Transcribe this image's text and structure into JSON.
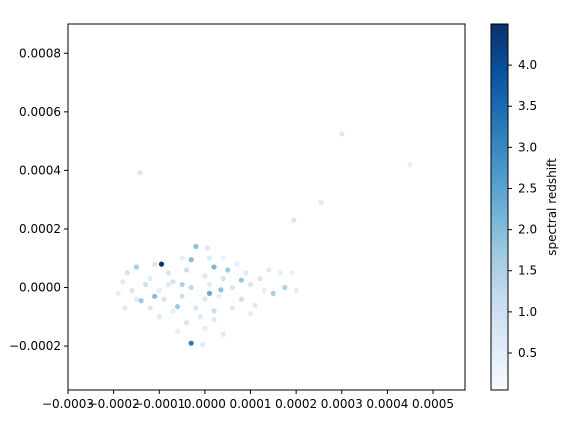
{
  "chart_data": {
    "type": "scatter",
    "title": "",
    "xlabel": "",
    "ylabel": "",
    "xlim": [
      -0.0003,
      0.00057
    ],
    "ylim": [
      -0.00035,
      0.0009
    ],
    "xticks": [
      -0.0003,
      -0.0002,
      -0.0001,
      0.0,
      0.0001,
      0.0002,
      0.0003,
      0.0004,
      0.0005
    ],
    "xtick_labels": [
      "−0.0003",
      "−0.0002",
      "−0.0001",
      "0.0000",
      "0.0001",
      "0.0002",
      "0.0003",
      "0.0004",
      "0.0005"
    ],
    "yticks": [
      -0.0002,
      0.0,
      0.0002,
      0.0004,
      0.0006,
      0.0008
    ],
    "ytick_labels": [
      "−0.0002",
      "0.0000",
      "0.0002",
      "0.0004",
      "0.0006",
      "0.0008"
    ],
    "colormap": "Blues",
    "colorbar": {
      "label": "spectral redshift",
      "range": [
        0.05,
        4.5
      ],
      "ticks": [
        0.5,
        1.0,
        1.5,
        2.0,
        2.5,
        3.0,
        3.5,
        4.0
      ],
      "tick_labels": [
        "0.5",
        "1.0",
        "1.5",
        "2.0",
        "2.5",
        "3.0",
        "3.5",
        "4.0"
      ]
    },
    "grid": false,
    "points": [
      {
        "x": 0.0003,
        "y": 0.000525,
        "z": 0.6
      },
      {
        "x": 0.00045,
        "y": 0.00042,
        "z": 0.4
      },
      {
        "x": 0.000195,
        "y": 0.00023,
        "z": 0.8
      },
      {
        "x": 0.000255,
        "y": 0.00029,
        "z": 0.6
      },
      {
        "x": -0.000142,
        "y": 0.000392,
        "z": 0.7
      },
      {
        "x": -9.5e-05,
        "y": 8e-05,
        "z": 4.4
      },
      {
        "x": -2e-05,
        "y": 0.00014,
        "z": 1.9
      },
      {
        "x": -3e-05,
        "y": -0.00019,
        "z": 3.2
      },
      {
        "x": 8e-05,
        "y": 2.5e-05,
        "z": 1.8
      },
      {
        "x": 1e-05,
        "y": -2e-05,
        "z": 2.3
      },
      {
        "x": -0.00015,
        "y": 7e-05,
        "z": 1.6
      },
      {
        "x": -0.00011,
        "y": -3e-05,
        "z": 2.0
      },
      {
        "x": 5e-05,
        "y": 6e-05,
        "z": 1.7
      },
      {
        "x": 2e-05,
        "y": 7e-05,
        "z": 2.1
      },
      {
        "x": -5e-05,
        "y": 1e-05,
        "z": 1.5
      },
      {
        "x": -3e-05,
        "y": 9.5e-05,
        "z": 2.0
      },
      {
        "x": -0.00014,
        "y": -4.5e-05,
        "z": 1.8
      },
      {
        "x": 0.00015,
        "y": -2e-05,
        "z": 1.6
      },
      {
        "x": 3.5e-05,
        "y": -8e-06,
        "z": 1.9
      },
      {
        "x": -6e-05,
        "y": -6.5e-05,
        "z": 1.7
      },
      {
        "x": 0.000175,
        "y": 0.0,
        "z": 1.4
      },
      {
        "x": -0.00017,
        "y": 5e-05,
        "z": 0.9
      },
      {
        "x": -0.00012,
        "y": 3e-05,
        "z": 0.6
      },
      {
        "x": -8e-05,
        "y": 5e-05,
        "z": 0.8
      },
      {
        "x": -4e-05,
        "y": 6e-05,
        "z": 1.1
      },
      {
        "x": 0.0,
        "y": 4e-05,
        "z": 0.7
      },
      {
        "x": 4e-05,
        "y": 3e-05,
        "z": 0.9
      },
      {
        "x": 9e-05,
        "y": 5e-05,
        "z": 0.6
      },
      {
        "x": 0.00012,
        "y": 3e-05,
        "z": 0.8
      },
      {
        "x": -0.00016,
        "y": -1e-05,
        "z": 0.7
      },
      {
        "x": -0.00013,
        "y": 1e-05,
        "z": 1.0
      },
      {
        "x": -0.0001,
        "y": -1e-05,
        "z": 0.5
      },
      {
        "x": -7e-05,
        "y": 2e-05,
        "z": 0.9
      },
      {
        "x": -3e-05,
        "y": 0.0,
        "z": 1.2
      },
      {
        "x": 1e-05,
        "y": 1e-05,
        "z": 0.6
      },
      {
        "x": 6e-05,
        "y": 0.0,
        "z": 0.8
      },
      {
        "x": 0.0001,
        "y": 1e-05,
        "z": 0.7
      },
      {
        "x": 0.00013,
        "y": -1e-05,
        "z": 0.5
      },
      {
        "x": -0.00015,
        "y": -4e-05,
        "z": 0.6
      },
      {
        "x": -9e-05,
        "y": -4e-05,
        "z": 0.8
      },
      {
        "x": -5e-05,
        "y": -3e-05,
        "z": 1.0
      },
      {
        "x": 0.0,
        "y": -4e-05,
        "z": 0.7
      },
      {
        "x": 3e-05,
        "y": -3e-05,
        "z": 0.5
      },
      {
        "x": 8e-05,
        "y": -4e-05,
        "z": 0.9
      },
      {
        "x": 0.00011,
        "y": -6e-05,
        "z": 0.6
      },
      {
        "x": -0.00012,
        "y": -7e-05,
        "z": 0.7
      },
      {
        "x": -7e-05,
        "y": -8e-05,
        "z": 0.5
      },
      {
        "x": -2e-05,
        "y": -7e-05,
        "z": 0.8
      },
      {
        "x": 2e-05,
        "y": -8e-05,
        "z": 1.1
      },
      {
        "x": 6e-05,
        "y": -7e-05,
        "z": 0.6
      },
      {
        "x": -4e-05,
        "y": -0.00012,
        "z": 0.7
      },
      {
        "x": 0.0,
        "y": -0.00014,
        "z": 0.5
      },
      {
        "x": 4e-05,
        "y": -0.00016,
        "z": 0.6
      },
      {
        "x": -6e-05,
        "y": -0.00015,
        "z": 0.4
      },
      {
        "x": -0.00019,
        "y": -2e-05,
        "z": 0.5
      },
      {
        "x": -0.00018,
        "y": 2e-05,
        "z": 0.6
      },
      {
        "x": 0.0002,
        "y": -1e-05,
        "z": 0.5
      },
      {
        "x": 0.00019,
        "y": 5e-05,
        "z": 0.4
      },
      {
        "x": 0.00014,
        "y": 6e-05,
        "z": 0.6
      },
      {
        "x": -5e-05,
        "y": 0.0001,
        "z": 0.5
      },
      {
        "x": 1e-05,
        "y": 0.0001,
        "z": 0.6
      },
      {
        "x": 4e-05,
        "y": 0.0001,
        "z": 0.4
      },
      {
        "x": -0.00011,
        "y": 8e-05,
        "z": 0.7
      },
      {
        "x": -8e-05,
        "y": 1e-05,
        "z": 0.6
      },
      {
        "x": 7e-05,
        "y": 8e-05,
        "z": 0.5
      },
      {
        "x": 2e-05,
        "y": -0.00011,
        "z": 0.7
      },
      {
        "x": -1e-05,
        "y": -0.0001,
        "z": 0.6
      },
      {
        "x": 0.0001,
        "y": -9e-05,
        "z": 0.5
      },
      {
        "x": -0.0001,
        "y": -0.0001,
        "z": 0.6
      },
      {
        "x": 0.000165,
        "y": 5e-05,
        "z": 0.5
      },
      {
        "x": -0.000175,
        "y": -7e-05,
        "z": 0.6
      },
      {
        "x": 5e-06,
        "y": 0.000135,
        "z": 0.8
      },
      {
        "x": -5e-06,
        "y": -0.000195,
        "z": 0.6
      }
    ]
  }
}
